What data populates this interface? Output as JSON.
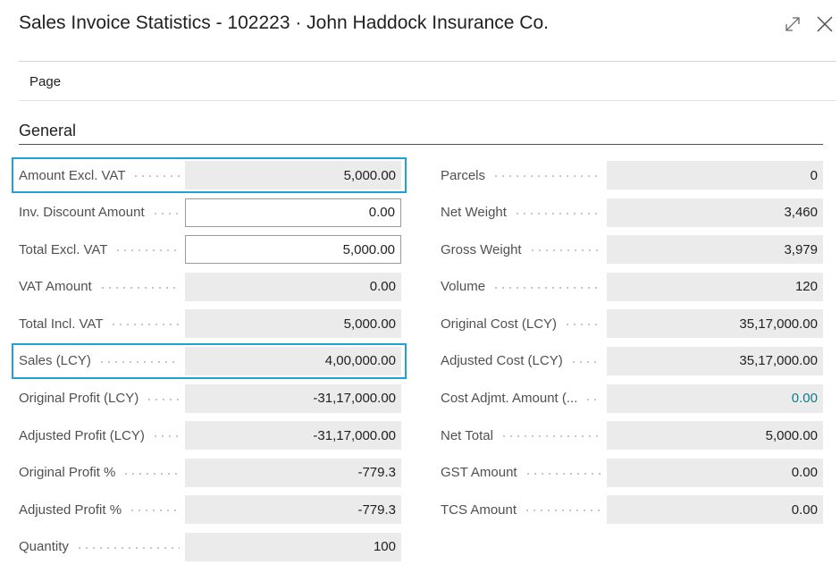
{
  "window": {
    "title": "Sales Invoice Statistics - 102223 · John Haddock Insurance Co.",
    "expand_icon": "expand-icon",
    "close_icon": "close-icon"
  },
  "actions": {
    "page_tab": "Page"
  },
  "section": {
    "title": "General"
  },
  "left_fields": [
    {
      "label": "Amount Excl. VAT",
      "value": "5,000.00",
      "highlighted": true
    },
    {
      "label": "Inv. Discount Amount",
      "value": "0.00",
      "editable": true
    },
    {
      "label": "Total Excl. VAT",
      "value": "5,000.00",
      "editable": true
    },
    {
      "label": "VAT Amount",
      "value": "0.00"
    },
    {
      "label": "Total Incl. VAT",
      "value": "5,000.00"
    },
    {
      "label": "Sales (LCY)",
      "value": "4,00,000.00",
      "highlighted": true
    },
    {
      "label": "Original Profit (LCY)",
      "value": "-31,17,000.00"
    },
    {
      "label": "Adjusted Profit (LCY)",
      "value": "-31,17,000.00"
    },
    {
      "label": "Original Profit %",
      "value": "-779.3"
    },
    {
      "label": "Adjusted Profit %",
      "value": "-779.3"
    },
    {
      "label": "Quantity",
      "value": "100"
    }
  ],
  "right_fields": [
    {
      "label": "Parcels",
      "value": "0"
    },
    {
      "label": "Net Weight",
      "value": "3,460"
    },
    {
      "label": "Gross Weight",
      "value": "3,979"
    },
    {
      "label": "Volume",
      "value": "120"
    },
    {
      "label": "Original Cost (LCY)",
      "value": "35,17,000.00"
    },
    {
      "label": "Adjusted Cost (LCY)",
      "value": "35,17,000.00"
    },
    {
      "label": "Cost Adjmt. Amount (...",
      "value": "0.00",
      "link": true
    },
    {
      "label": "Net Total",
      "value": "5,000.00"
    },
    {
      "label": "GST Amount",
      "value": "0.00"
    },
    {
      "label": "TCS Amount",
      "value": "0.00"
    }
  ],
  "colors": {
    "highlight": "#20a0d8",
    "link": "#0f7b8a",
    "readonly_bg": "#ebebeb"
  }
}
